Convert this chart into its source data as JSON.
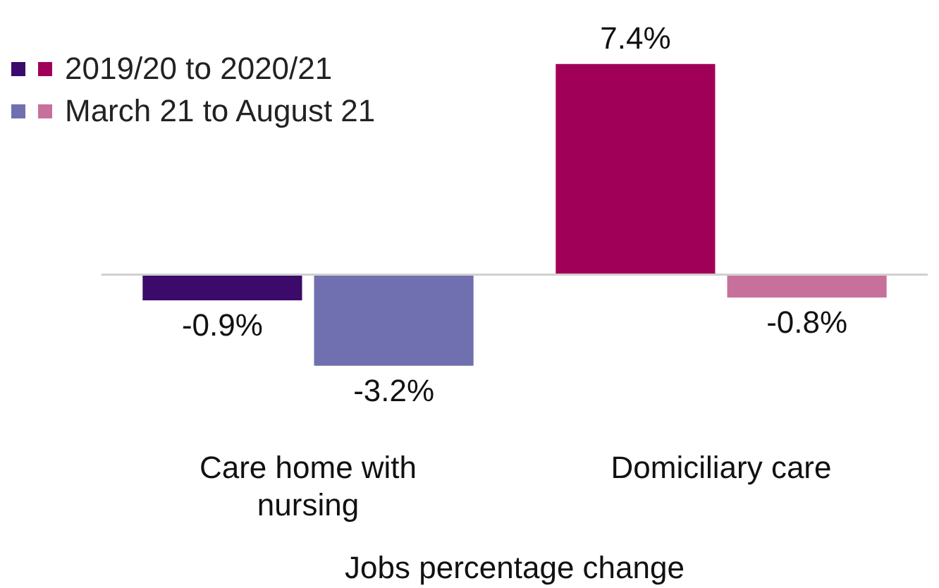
{
  "chart_data": {
    "type": "bar",
    "xlabel": "Jobs percentage change",
    "categories": [
      "Care home with nursing",
      "Domiciliary care"
    ],
    "series": [
      {
        "name": "2019/20 to 2020/21",
        "colors": [
          "#3b0a6b",
          "#a10058"
        ],
        "values": [
          -0.9,
          7.4
        ],
        "value_labels": [
          "-0.9%",
          "7.4%"
        ]
      },
      {
        "name": "March 21 to August 21",
        "colors": [
          "#7070b0",
          "#c8709c"
        ],
        "values": [
          -3.2,
          -0.8
        ],
        "value_labels": [
          "-3.2%",
          "-0.8%"
        ]
      }
    ],
    "legend": "top left"
  }
}
